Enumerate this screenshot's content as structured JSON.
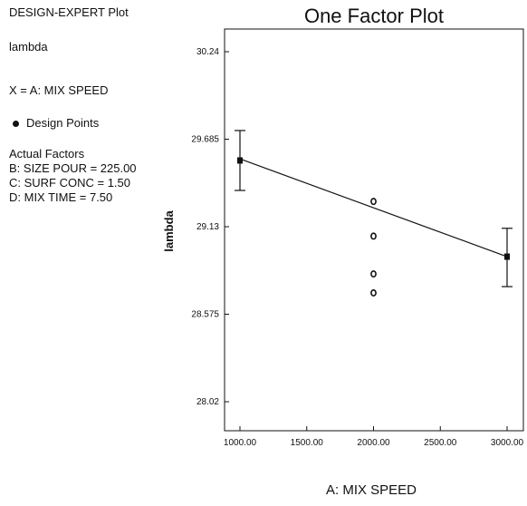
{
  "sidebar": {
    "header": "DESIGN-EXPERT Plot",
    "response": "lambda",
    "x_factor": "X = A: MIX SPEED",
    "legend_design_points": "Design Points",
    "actual_factors_title": "Actual Factors",
    "actual_factors": [
      "B: SIZE POUR = 225.00",
      "C: SURF CONC = 1.50",
      "D: MIX TIME = 7.50"
    ]
  },
  "chart_data": {
    "type": "line",
    "title": "One Factor Plot",
    "xlabel": "A: MIX SPEED",
    "ylabel": "lambda",
    "xlim": [
      1000,
      3000
    ],
    "ylim": [
      28.02,
      30.24
    ],
    "x_ticks": [
      "1000.00",
      "1500.00",
      "2000.00",
      "2500.00",
      "3000.00"
    ],
    "y_ticks": [
      "28.02",
      "28.575",
      "29.13",
      "29.685",
      "30.24"
    ],
    "fit_line": {
      "x": [
        1000,
        3000
      ],
      "y": [
        29.56,
        28.94
      ]
    },
    "error_bars": [
      {
        "x": 1000,
        "low": 29.36,
        "high": 29.74
      },
      {
        "x": 3000,
        "low": 28.75,
        "high": 29.12
      }
    ],
    "design_points": [
      {
        "x": 1000,
        "y": 29.55
      },
      {
        "x": 2000,
        "y": 29.29
      },
      {
        "x": 2000,
        "y": 29.07
      },
      {
        "x": 2000,
        "y": 28.83
      },
      {
        "x": 2000,
        "y": 28.71
      },
      {
        "x": 3000,
        "y": 28.94
      }
    ],
    "grid": false,
    "legend": "left panel"
  }
}
